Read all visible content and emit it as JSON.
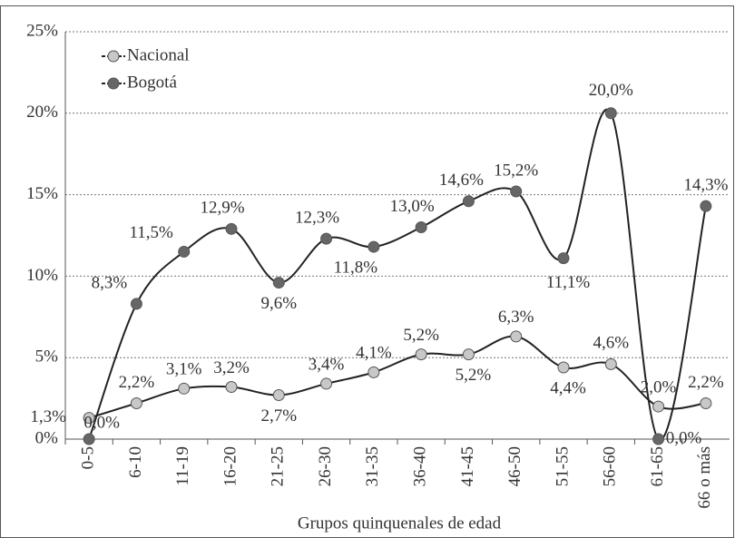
{
  "chart_data": {
    "type": "line",
    "x_label": "Grupos quinquenales de edad",
    "categories": [
      "0-5",
      "6-10",
      "11-19",
      "16-20",
      "21-25",
      "26-30",
      "31-35",
      "36-40",
      "41-45",
      "46-50",
      "51-55",
      "56-60",
      "61-65",
      "66 o más"
    ],
    "series": [
      {
        "name": "Nacional",
        "color": "#c8c8c8",
        "values": [
          1.3,
          2.2,
          3.1,
          3.2,
          2.7,
          3.4,
          4.1,
          5.2,
          5.2,
          6.3,
          4.4,
          4.6,
          2.0,
          2.2
        ],
        "value_labels": [
          "1,3%",
          "2,2%",
          "3,1%",
          "3,2%",
          "2,7%",
          "3,4%",
          "4,1%",
          "5,2%",
          "5,2%",
          "6,3%",
          "4,4%",
          "4,6%",
          "2,0%",
          "2,2%"
        ]
      },
      {
        "name": "Bogotá",
        "color": "#666666",
        "values": [
          0.0,
          8.3,
          11.5,
          12.9,
          9.6,
          12.3,
          11.8,
          13.0,
          14.6,
          15.2,
          11.1,
          20.0,
          0.0,
          14.3
        ],
        "value_labels": [
          "0,0%",
          "8,3%",
          "11,5%",
          "12,9%",
          "9,6%",
          "12,3%",
          "11,8%",
          "13,0%",
          "14,6%",
          "15,2%",
          "11,1%",
          "20,0%",
          "0,0%",
          "14,3%"
        ]
      }
    ],
    "ylim": [
      0,
      25
    ],
    "yticks": [
      {
        "value": 0,
        "label": "0%"
      },
      {
        "value": 5,
        "label": "5%"
      },
      {
        "value": 10,
        "label": "10%"
      },
      {
        "value": 15,
        "label": "15%"
      },
      {
        "value": 20,
        "label": "20%"
      },
      {
        "value": 25,
        "label": "25%"
      }
    ],
    "grid": true,
    "legend": "upper left"
  }
}
